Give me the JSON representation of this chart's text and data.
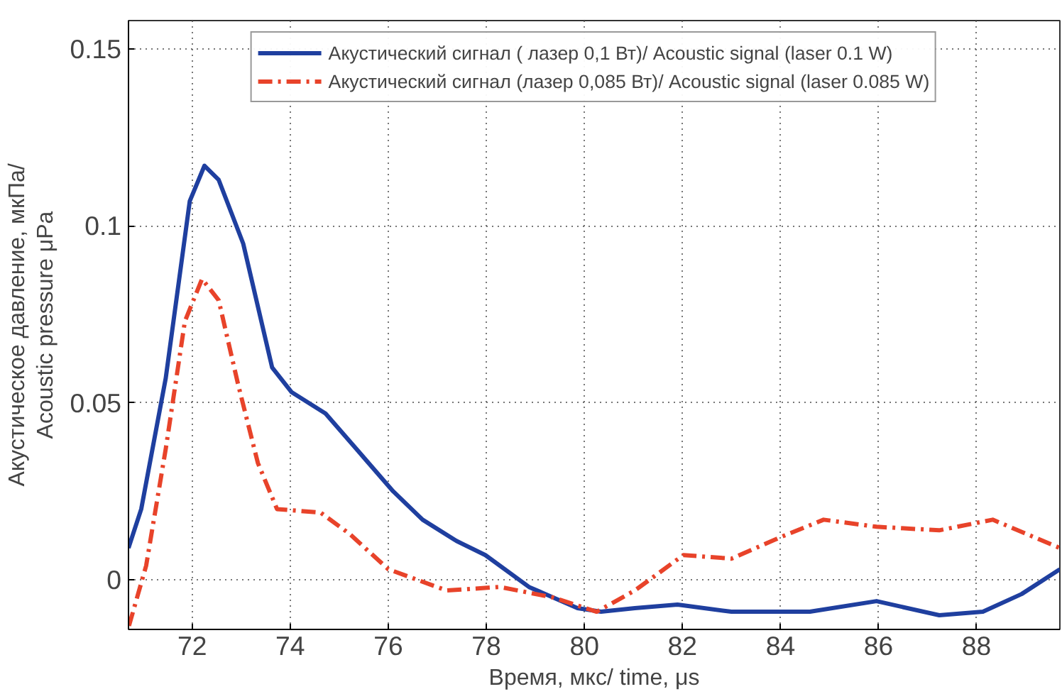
{
  "chart_data": {
    "type": "line",
    "xlabel": "Время, мкс/ time, μs",
    "ylabel": "Акустическое давление, мкПа/\nAcoustic pressure μPa",
    "xlim": [
      70.7,
      89.7
    ],
    "ylim": [
      -0.014,
      0.158
    ],
    "xticks": [
      72,
      74,
      76,
      78,
      80,
      82,
      84,
      86,
      88
    ],
    "yticks": [
      0,
      0.05,
      0.1,
      0.15
    ],
    "grid": true,
    "legend": "top",
    "series": [
      {
        "name": "Акустический сигнал ( лазер 0,1 Вт)/ Acoustic signal (laser 0.1 W)",
        "color": "#1f3f9f",
        "line_style": "solid",
        "x": [
          70.7,
          70.96,
          71.46,
          71.95,
          72.25,
          72.54,
          73.04,
          73.63,
          74.03,
          74.72,
          75.41,
          76.1,
          76.7,
          77.39,
          77.98,
          78.87,
          79.86,
          80.34,
          81.03,
          81.9,
          83.0,
          84.6,
          85.96,
          87.24,
          88.13,
          88.92,
          89.7
        ],
        "values": [
          0.009,
          0.02,
          0.057,
          0.107,
          0.117,
          0.113,
          0.095,
          0.06,
          0.053,
          0.047,
          0.036,
          0.025,
          0.017,
          0.011,
          0.007,
          -0.002,
          -0.008,
          -0.009,
          -0.008,
          -0.007,
          -0.009,
          -0.009,
          -0.006,
          -0.01,
          -0.009,
          -0.004,
          0.003
        ]
      },
      {
        "name": "Акустический сигнал (лазер 0,085 Вт)/ Acoustic signal (laser 0.085 W)",
        "color": "#e8432a",
        "line_style": "dashdot",
        "x": [
          70.71,
          71.06,
          71.46,
          71.85,
          72.2,
          72.54,
          72.94,
          73.34,
          73.73,
          74.62,
          75.21,
          76.0,
          77.19,
          78.28,
          79.37,
          80.25,
          81.03,
          82.02,
          83.0,
          83.99,
          84.88,
          85.96,
          87.24,
          88.33,
          89.7
        ],
        "values": [
          -0.013,
          0.004,
          0.037,
          0.073,
          0.085,
          0.079,
          0.055,
          0.033,
          0.02,
          0.019,
          0.013,
          0.003,
          -0.003,
          -0.002,
          -0.005,
          -0.009,
          -0.003,
          0.007,
          0.006,
          0.012,
          0.017,
          0.015,
          0.014,
          0.017,
          0.009
        ]
      }
    ]
  }
}
